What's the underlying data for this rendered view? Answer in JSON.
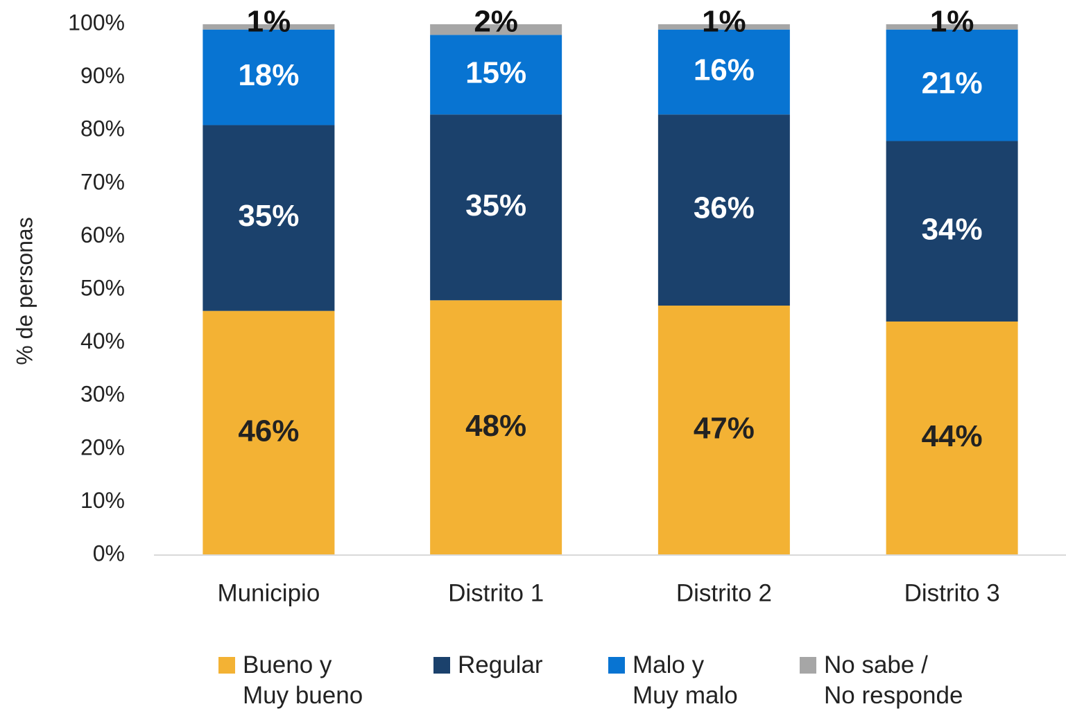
{
  "chart_data": {
    "type": "stacked_bar",
    "y_label": "% de personas",
    "categories": [
      "Municipio",
      "Distrito 1",
      "Distrito 2",
      "Distrito 3"
    ],
    "series": [
      {
        "name": "Bueno y\nMuy bueno",
        "color": "#f3b234",
        "label_color": "#222222",
        "values": [
          46,
          48,
          47,
          44
        ],
        "value_labels": [
          "46%",
          "48%",
          "47%",
          "44%"
        ]
      },
      {
        "name": "Regular",
        "color": "#1b416c",
        "label_color": "#ffffff",
        "values": [
          35,
          35,
          36,
          34
        ],
        "value_labels": [
          "35%",
          "35%",
          "36%",
          "34%"
        ]
      },
      {
        "name": "Malo y\nMuy malo",
        "color": "#0874d2",
        "label_color": "#ffffff",
        "values": [
          18,
          15,
          16,
          21
        ],
        "value_labels": [
          "18%",
          "15%",
          "16%",
          "21%"
        ]
      },
      {
        "name": "No sabe /\nNo responde",
        "color": "#a6a6a6",
        "label_color": "#111111",
        "values": [
          1,
          2,
          1,
          1
        ],
        "value_labels": [
          "1%",
          "2%",
          "1%",
          "1%"
        ]
      }
    ],
    "ylim": [
      0,
      100
    ],
    "yticks": [
      {
        "value": 0,
        "label": "0%"
      },
      {
        "value": 10,
        "label": "10%"
      },
      {
        "value": 20,
        "label": "20%"
      },
      {
        "value": 30,
        "label": "30%"
      },
      {
        "value": 40,
        "label": "40%"
      },
      {
        "value": 50,
        "label": "50%"
      },
      {
        "value": 60,
        "label": "60%"
      },
      {
        "value": 70,
        "label": "70%"
      },
      {
        "value": 80,
        "label": "80%"
      },
      {
        "value": 90,
        "label": "90%"
      },
      {
        "value": 100,
        "label": "100%"
      }
    ],
    "legend": "bottom"
  }
}
